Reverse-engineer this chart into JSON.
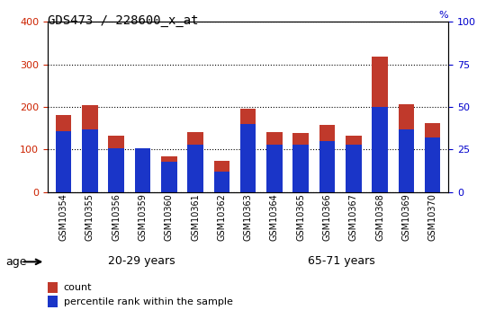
{
  "title": "GDS473 / 228600_x_at",
  "samples": [
    "GSM10354",
    "GSM10355",
    "GSM10356",
    "GSM10359",
    "GSM10360",
    "GSM10361",
    "GSM10362",
    "GSM10363",
    "GSM10364",
    "GSM10365",
    "GSM10366",
    "GSM10367",
    "GSM10368",
    "GSM10369",
    "GSM10370"
  ],
  "red_values": [
    182,
    204,
    132,
    100,
    84,
    142,
    74,
    196,
    142,
    138,
    158,
    132,
    318,
    206,
    163
  ],
  "blue_values": [
    36,
    37,
    26,
    26,
    18,
    28,
    12,
    40,
    28,
    28,
    30,
    28,
    50,
    37,
    32
  ],
  "blue_scale": 4.0,
  "ylim_left": [
    0,
    400
  ],
  "ylim_right": [
    0,
    100
  ],
  "yticks_left": [
    0,
    100,
    200,
    300,
    400
  ],
  "yticks_right": [
    0,
    25,
    50,
    75,
    100
  ],
  "bar_color": "#C0392B",
  "blue_color": "#1A35C8",
  "grid_color": "#000000",
  "group1_label": "20-29 years",
  "group2_label": "65-71 years",
  "group1_count": 7,
  "group2_count": 8,
  "age_label": "age",
  "legend1": "count",
  "legend2": "percentile rank within the sample",
  "xlabel_color": "#CC2200",
  "right_axis_color": "#0000CC",
  "group1_bg": "#90EE90",
  "group2_bg": "#32CD32",
  "plot_bg": "#FFFFFF",
  "tick_label_bg": "#BEBEBE"
}
